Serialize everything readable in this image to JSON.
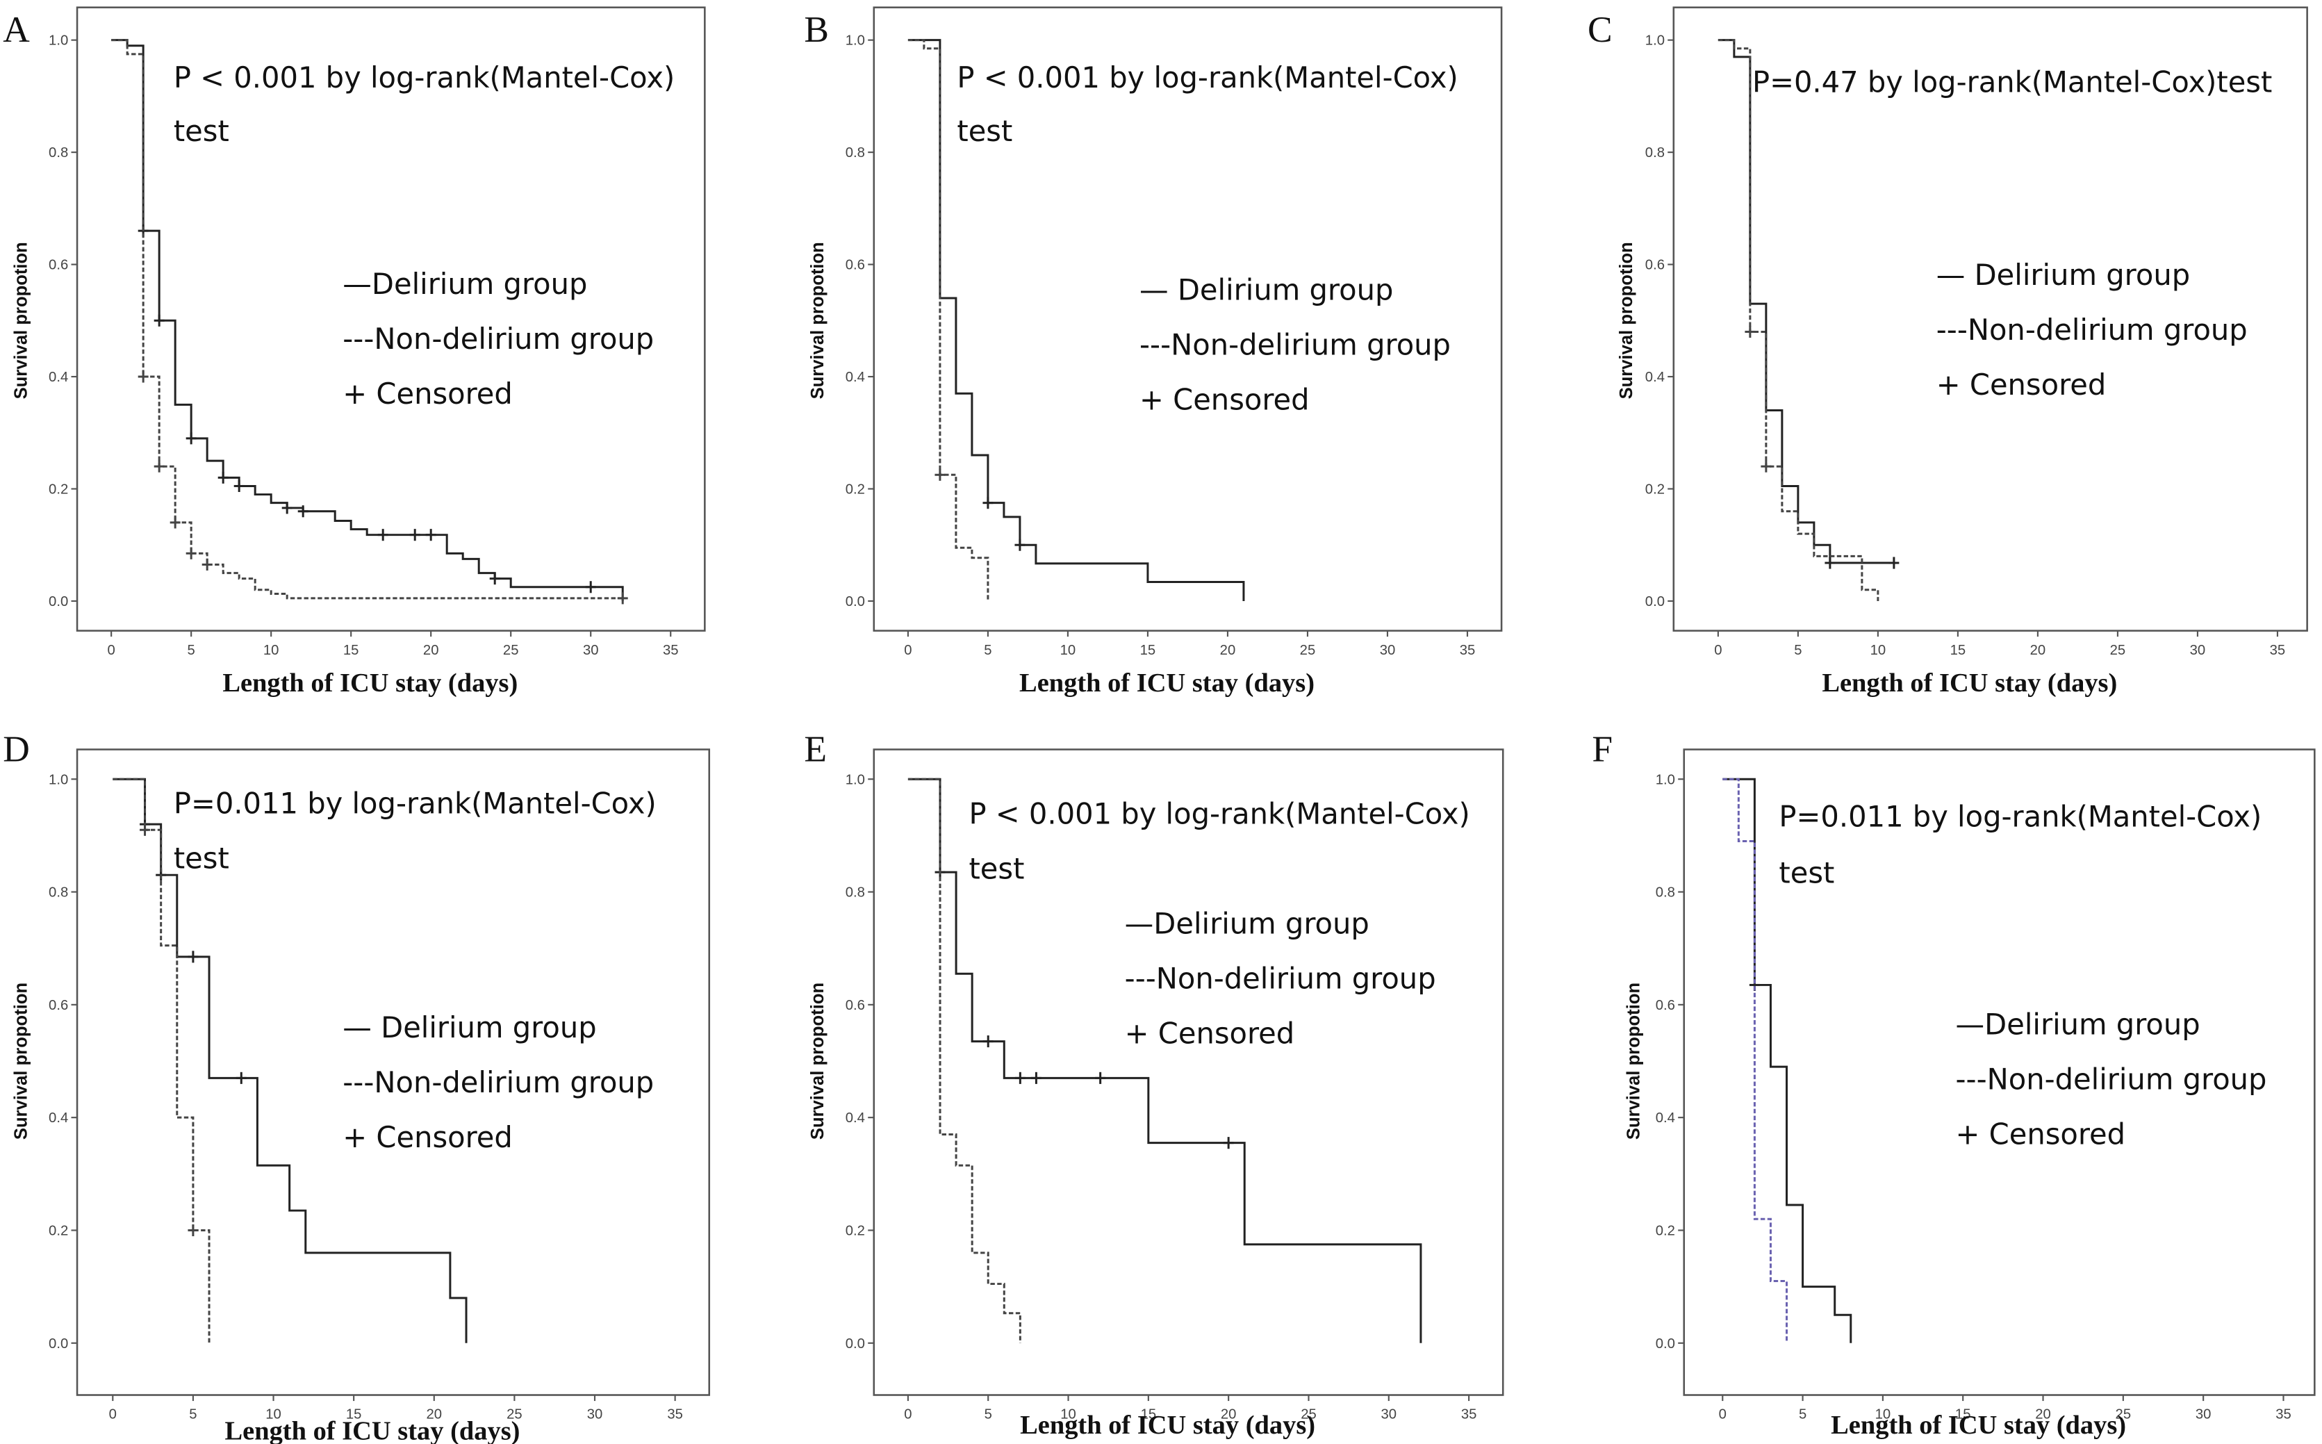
{
  "chart_data": [
    {
      "type": "line",
      "panel": "A",
      "title": "",
      "annotation": [
        "P < 0.001 by log-rank(Mantel-Cox)",
        "test"
      ],
      "xlabel": "Length of ICU stay (days)",
      "ylabel": "Survival propotion",
      "xlim": [
        0,
        35
      ],
      "ylim": [
        0,
        1
      ],
      "xticks": [
        "0",
        "5",
        "10",
        "15",
        "20",
        "25",
        "30",
        "35"
      ],
      "yticks": [
        "0.0",
        "0.2",
        "0.4",
        "0.6",
        "0.8",
        "1.0"
      ],
      "grid": false,
      "legend_position": "center-right",
      "legend": [
        "—Delirium group",
        "---Non-delirium group",
        "+ Censored"
      ],
      "series": [
        {
          "name": "Delirium group",
          "style": "solid",
          "color": "#222222",
          "x": [
            0,
            1,
            2,
            3,
            4,
            5,
            6,
            7,
            8,
            9,
            10,
            11,
            12,
            14,
            15,
            16,
            21,
            22,
            23,
            24,
            25,
            32
          ],
          "y": [
            1.0,
            0.99,
            0.66,
            0.5,
            0.35,
            0.29,
            0.25,
            0.22,
            0.205,
            0.19,
            0.175,
            0.166,
            0.16,
            0.143,
            0.128,
            0.118,
            0.085,
            0.075,
            0.05,
            0.04,
            0.025,
            0.0
          ],
          "censored": [
            [
              2,
              0.66
            ],
            [
              3,
              0.5
            ],
            [
              5,
              0.29
            ],
            [
              7,
              0.22
            ],
            [
              8,
              0.205
            ],
            [
              11,
              0.166
            ],
            [
              12,
              0.16
            ],
            [
              17,
              0.118
            ],
            [
              19,
              0.118
            ],
            [
              20,
              0.118
            ],
            [
              24,
              0.04
            ],
            [
              30,
              0.025
            ]
          ]
        },
        {
          "name": "Non-delirium group",
          "style": "dashed",
          "color": "#444444",
          "x": [
            0,
            1,
            2,
            3,
            4,
            5,
            6,
            7,
            8,
            9,
            10,
            11,
            32
          ],
          "y": [
            1.0,
            0.975,
            0.4,
            0.24,
            0.14,
            0.085,
            0.065,
            0.05,
            0.04,
            0.02,
            0.013,
            0.005,
            0.005
          ],
          "censored": [
            [
              2,
              0.4
            ],
            [
              3,
              0.24
            ],
            [
              4,
              0.14
            ],
            [
              5,
              0.085
            ],
            [
              6,
              0.065
            ],
            [
              32,
              0.005
            ]
          ]
        }
      ]
    },
    {
      "type": "line",
      "panel": "B",
      "title": "",
      "annotation": [
        "P < 0.001 by log-rank(Mantel-Cox)",
        "test"
      ],
      "xlabel": "Length of ICU stay (days)",
      "ylabel": "Survival propotion",
      "xlim": [
        0,
        35
      ],
      "ylim": [
        0,
        1
      ],
      "xticks": [
        "0",
        "5",
        "10",
        "15",
        "20",
        "25",
        "30",
        "35"
      ],
      "yticks": [
        "0.0",
        "0.2",
        "0.4",
        "0.6",
        "0.8",
        "1.0"
      ],
      "grid": false,
      "legend_position": "center-right",
      "legend": [
        "— Delirium group",
        "---Non-delirium group",
        "+ Censored"
      ],
      "series": [
        {
          "name": "Delirium group",
          "style": "solid",
          "color": "#222222",
          "x": [
            0,
            2,
            3,
            4,
            5,
            6,
            7,
            8,
            15,
            21
          ],
          "y": [
            1.0,
            0.54,
            0.37,
            0.26,
            0.175,
            0.15,
            0.1,
            0.067,
            0.034,
            0.0
          ],
          "censored": [
            [
              5,
              0.175
            ],
            [
              7,
              0.1
            ]
          ]
        },
        {
          "name": "Non-delirium group",
          "style": "dashed",
          "color": "#444444",
          "x": [
            0,
            1,
            2,
            3,
            4,
            5
          ],
          "y": [
            1.0,
            0.985,
            0.225,
            0.095,
            0.077,
            0.0
          ],
          "censored": [
            [
              2,
              0.225
            ]
          ]
        }
      ]
    },
    {
      "type": "line",
      "panel": "C",
      "title": "",
      "annotation": [
        "P=0.47 by log-rank(Mantel-Cox)test"
      ],
      "xlabel": "Length of ICU stay (days)",
      "ylabel": "Survival propotion",
      "xlim": [
        0,
        35
      ],
      "ylim": [
        0,
        1
      ],
      "xticks": [
        "0",
        "5",
        "10",
        "15",
        "20",
        "25",
        "30",
        "35"
      ],
      "yticks": [
        "0.0",
        "0.2",
        "0.4",
        "0.6",
        "0.8",
        "1.0"
      ],
      "grid": false,
      "legend_position": "center-right",
      "legend": [
        "— Delirium group",
        "---Non-delirium group",
        "+ Censored"
      ],
      "series": [
        {
          "name": "Delirium group",
          "style": "solid",
          "color": "#222222",
          "x": [
            0,
            1,
            2,
            3,
            4,
            5,
            6,
            7,
            11
          ],
          "y": [
            1.0,
            0.97,
            0.53,
            0.34,
            0.205,
            0.14,
            0.1,
            0.068,
            0.068
          ],
          "censored": [
            [
              7,
              0.068
            ],
            [
              11,
              0.068
            ]
          ]
        },
        {
          "name": "Non-delirium group",
          "style": "dashed",
          "color": "#444444",
          "x": [
            0,
            1,
            2,
            3,
            4,
            5,
            6,
            9,
            10
          ],
          "y": [
            1.0,
            0.985,
            0.48,
            0.24,
            0.16,
            0.12,
            0.08,
            0.02,
            0.0
          ],
          "censored": [
            [
              2,
              0.48
            ],
            [
              3,
              0.24
            ]
          ]
        }
      ]
    },
    {
      "type": "line",
      "panel": "D",
      "title": "",
      "annotation": [
        "P=0.011 by log-rank(Mantel-Cox)",
        "test"
      ],
      "xlabel": "Length of ICU stay (days)",
      "ylabel": "Survival propotion",
      "xlim": [
        0,
        35
      ],
      "ylim": [
        0,
        1
      ],
      "xticks": [
        "0",
        "5",
        "10",
        "15",
        "20",
        "25",
        "30",
        "35"
      ],
      "yticks": [
        "0.0",
        "0.2",
        "0.4",
        "0.6",
        "0.8",
        "1.0"
      ],
      "grid": false,
      "legend_position": "center-right",
      "legend": [
        "— Delirium group",
        "---Non-delirium group",
        "+ Censored"
      ],
      "series": [
        {
          "name": "Delirium group",
          "style": "solid",
          "color": "#222222",
          "x": [
            0,
            2,
            3,
            4,
            6,
            9,
            11,
            12,
            21,
            22
          ],
          "y": [
            1.0,
            0.92,
            0.83,
            0.685,
            0.47,
            0.315,
            0.235,
            0.16,
            0.08,
            0.0
          ],
          "censored": [
            [
              2,
              0.92
            ],
            [
              3,
              0.83
            ],
            [
              5,
              0.685
            ],
            [
              8,
              0.47
            ]
          ]
        },
        {
          "name": "Non-delirium group",
          "style": "dashed",
          "color": "#444444",
          "x": [
            0,
            2,
            3,
            4,
            5,
            6
          ],
          "y": [
            1.0,
            0.91,
            0.705,
            0.4,
            0.2,
            0.0
          ],
          "censored": [
            [
              2,
              0.91
            ],
            [
              5,
              0.2
            ]
          ]
        }
      ]
    },
    {
      "type": "line",
      "panel": "E",
      "title": "",
      "annotation": [
        "P < 0.001 by log-rank(Mantel-Cox)",
        "test"
      ],
      "xlabel": "Length of ICU stay (days)",
      "ylabel": "Survival propotion",
      "xlim": [
        0,
        35
      ],
      "ylim": [
        0,
        1
      ],
      "xticks": [
        "0",
        "5",
        "10",
        "15",
        "20",
        "25",
        "30",
        "35"
      ],
      "yticks": [
        "0.0",
        "0.2",
        "0.4",
        "0.6",
        "0.8",
        "1.0"
      ],
      "grid": false,
      "legend_position": "center-right",
      "legend": [
        "—Delirium group",
        "---Non-delirium group",
        "+ Censored"
      ],
      "series": [
        {
          "name": "Delirium group",
          "style": "solid",
          "color": "#222222",
          "x": [
            0,
            2,
            3,
            4,
            6,
            15,
            21,
            32
          ],
          "y": [
            1.0,
            0.835,
            0.655,
            0.535,
            0.47,
            0.355,
            0.175,
            0.0
          ],
          "censored": [
            [
              2,
              0.835
            ],
            [
              5,
              0.535
            ],
            [
              7,
              0.47
            ],
            [
              8,
              0.47
            ],
            [
              12,
              0.47
            ],
            [
              20,
              0.355
            ]
          ]
        },
        {
          "name": "Non-delirium group",
          "style": "dashed",
          "color": "#444444",
          "x": [
            0,
            2,
            3,
            4,
            5,
            6,
            7
          ],
          "y": [
            1.0,
            0.37,
            0.315,
            0.16,
            0.105,
            0.053,
            0.0
          ],
          "censored": []
        }
      ]
    },
    {
      "type": "line",
      "panel": "F",
      "title": "",
      "annotation": [
        "P=0.011 by log-rank(Mantel-Cox)",
        "test"
      ],
      "xlabel": "Length of ICU stay (days)",
      "ylabel": "Survival propotion",
      "xlim": [
        0,
        35
      ],
      "ylim": [
        0,
        1
      ],
      "xticks": [
        "0",
        "5",
        "10",
        "15",
        "20",
        "25",
        "30",
        "35"
      ],
      "yticks": [
        "0.0",
        "0.2",
        "0.4",
        "0.6",
        "0.8",
        "1.0"
      ],
      "grid": false,
      "legend_position": "center-right",
      "legend": [
        "—Delirium group",
        "---Non-delirium group",
        "+ Censored"
      ],
      "series": [
        {
          "name": "Delirium group",
          "style": "solid",
          "color": "#222222",
          "x": [
            0,
            2,
            3,
            4,
            5,
            7,
            8
          ],
          "y": [
            1.0,
            0.635,
            0.49,
            0.245,
            0.1,
            0.05,
            0.0
          ],
          "censored": [
            [
              2,
              0.635
            ]
          ]
        },
        {
          "name": "Non-delirium group",
          "style": "dashed",
          "color": "#6a62b0",
          "x": [
            0,
            1,
            2,
            3,
            4
          ],
          "y": [
            1.0,
            0.89,
            0.22,
            0.11,
            0.0
          ],
          "censored": []
        }
      ]
    }
  ]
}
